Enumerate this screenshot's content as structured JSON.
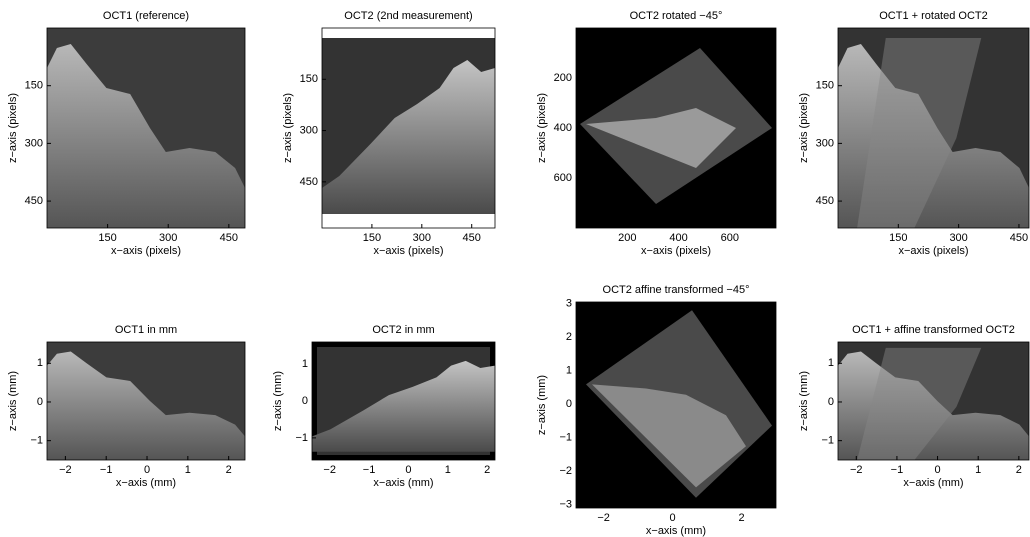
{
  "chart_data": [
    {
      "type": "image",
      "title": "OCT1 (reference)",
      "xlabel": "x−axis (pixels)",
      "ylabel": "z−axis (pixels)",
      "xlim": [
        0,
        490
      ],
      "ylim": [
        520,
        0
      ],
      "xticks": [
        150,
        300,
        450
      ],
      "yticks": [
        150,
        300,
        450
      ]
    },
    {
      "type": "image",
      "title": "OCT2 (2nd measurement)",
      "xlabel": "x−axis (pixels)",
      "ylabel": "z−axis (pixels)",
      "xlim": [
        0,
        520
      ],
      "ylim": [
        585,
        0
      ],
      "xticks": [
        150,
        300,
        450
      ],
      "yticks": [
        150,
        300,
        450
      ]
    },
    {
      "type": "image",
      "title": "OCT2 rotated −45°",
      "xlabel": "x−axis (pixels)",
      "ylabel": "z−axis (pixels)",
      "xlim": [
        0,
        780
      ],
      "ylim": [
        800,
        0
      ],
      "xticks": [
        200,
        400,
        600
      ],
      "yticks": [
        200,
        400,
        600
      ]
    },
    {
      "type": "image",
      "title": "OCT1 + rotated OCT2",
      "xlabel": "x−axis (pixels)",
      "ylabel": "z−axis (pixels)",
      "xlim": [
        0,
        475
      ],
      "ylim": [
        520,
        0
      ],
      "xticks": [
        150,
        300,
        450
      ],
      "yticks": [
        150,
        300,
        450
      ]
    },
    {
      "type": "image",
      "title": "OCT1 in mm",
      "xlabel": "x−axis (mm)",
      "ylabel": "z−axis (mm)",
      "xlim": [
        -2.45,
        2.4
      ],
      "ylim": [
        -1.5,
        1.55
      ],
      "xticks": [
        {
          "value": -2,
          "label": "−2"
        },
        {
          "value": -1,
          "label": "−1"
        },
        0,
        1,
        2
      ],
      "yticks": [
        {
          "value": -1,
          "label": "−1"
        },
        0,
        1
      ]
    },
    {
      "type": "image",
      "title": "OCT2 in mm",
      "xlabel": "x−axis (mm)",
      "ylabel": "z−axis (mm)",
      "xlim": [
        -2.45,
        2.2
      ],
      "ylim": [
        -1.6,
        1.6
      ],
      "xticks": [
        {
          "value": -2,
          "label": "−2"
        },
        {
          "value": -1,
          "label": "−1"
        },
        0,
        1,
        2
      ],
      "yticks": [
        {
          "value": -1,
          "label": "−1"
        },
        0,
        1
      ]
    },
    {
      "type": "image",
      "title": "OCT2 affine transformed −45°",
      "xlabel": "x−axis (mm)",
      "ylabel": "z−axis (mm)",
      "xlim": [
        -2.8,
        3
      ],
      "ylim": [
        -3.1,
        3.05
      ],
      "xticks": [
        {
          "value": -2,
          "label": "−2"
        },
        0,
        2
      ],
      "yticks": [
        {
          "value": -3,
          "label": "−3"
        },
        {
          "value": -2,
          "label": "−2"
        },
        {
          "value": -1,
          "label": "−1"
        },
        0,
        1,
        2,
        3
      ]
    },
    {
      "type": "image",
      "title": "OCT1 + affine transformed OCT2",
      "xlabel": "x−axis (mm)",
      "ylabel": "z−axis (mm)",
      "xlim": [
        -2.45,
        2.25
      ],
      "ylim": [
        -1.5,
        1.55
      ],
      "xticks": [
        {
          "value": -2,
          "label": "−2"
        },
        {
          "value": -1,
          "label": "−1"
        },
        0,
        1,
        2
      ],
      "yticks": [
        {
          "value": -1,
          "label": "−1"
        },
        0,
        1
      ]
    }
  ]
}
